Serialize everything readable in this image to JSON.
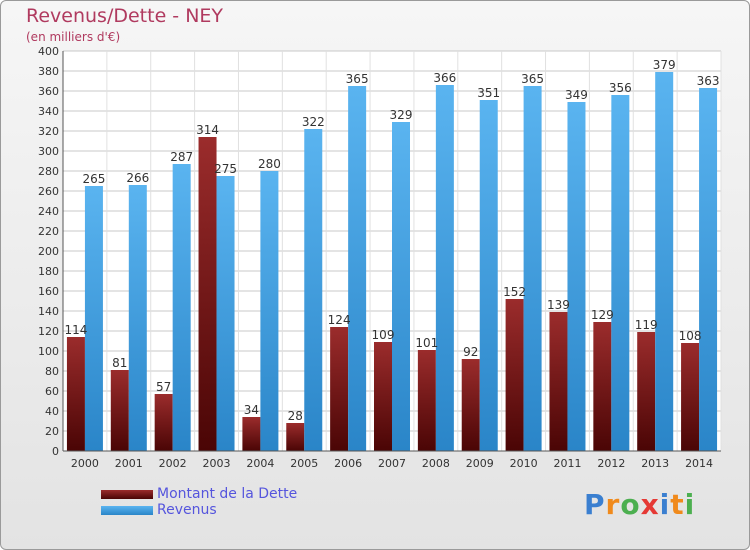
{
  "header": {
    "title": "Revenus/Dette - NEY",
    "subtitle": "(en milliers d'€)"
  },
  "colors": {
    "dette": "#7a1a1a",
    "revenus": "#3f9fe0",
    "title": "#b03a5f",
    "legend_text": "#5555dd"
  },
  "chart_data": {
    "type": "bar",
    "title": "Revenus/Dette - NEY",
    "subtitle": "(en milliers d'€)",
    "categories": [
      "2000",
      "2001",
      "2002",
      "2003",
      "2004",
      "2005",
      "2006",
      "2007",
      "2008",
      "2009",
      "2010",
      "2011",
      "2012",
      "2013",
      "2014"
    ],
    "series": [
      {
        "name": "Montant de la Dette",
        "values": [
          114,
          81,
          57,
          314,
          34,
          28,
          124,
          109,
          101,
          92,
          152,
          139,
          129,
          119,
          108
        ]
      },
      {
        "name": "Revenus",
        "values": [
          265,
          266,
          287,
          275,
          280,
          322,
          365,
          329,
          366,
          351,
          365,
          349,
          356,
          379,
          363
        ]
      }
    ],
    "ylim": [
      0,
      400
    ],
    "yticks": [
      0,
      20,
      40,
      60,
      80,
      100,
      120,
      140,
      160,
      180,
      200,
      220,
      240,
      260,
      280,
      300,
      320,
      340,
      360,
      380,
      400
    ],
    "grid": true,
    "legend_position": "bottom-left"
  },
  "legend": {
    "items": [
      {
        "label": "Montant de la Dette"
      },
      {
        "label": "Revenus"
      }
    ]
  },
  "logo": {
    "letters": [
      "P",
      "r",
      "o",
      "x",
      "i",
      "t",
      "i"
    ],
    "colors": [
      "#3a7fd0",
      "#f08a1c",
      "#4caf50",
      "#e53935",
      "#3a7fd0",
      "#f08a1c",
      "#4caf50"
    ]
  }
}
